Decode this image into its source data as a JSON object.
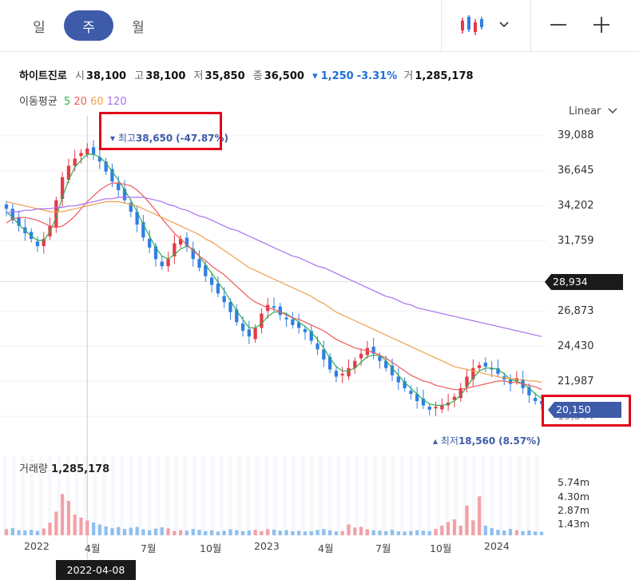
{
  "tabs": [
    {
      "label": "일",
      "active": false
    },
    {
      "label": "주",
      "active": true
    },
    {
      "label": "월",
      "active": false
    }
  ],
  "icons": {
    "chart_type": "candlestick-icon",
    "dropdown": "chevron-down-icon",
    "zoom_out": "minus-icon",
    "zoom_in": "plus-icon"
  },
  "stock": {
    "name": "하이트진로",
    "open_label": "시",
    "open": "38,100",
    "high_label": "고",
    "high": "38,100",
    "low_label": "저",
    "low": "35,850",
    "close_label": "종",
    "close": "36,500",
    "change": "1,250",
    "change_pct": "-3.31%",
    "volume_label": "거",
    "volume": "1,285,178"
  },
  "moving_average": {
    "label": "이동평균",
    "periods": [
      "5",
      "20",
      "60",
      "120"
    ],
    "colors": {
      "5": "#2eae52",
      "20": "#ee5a5a",
      "60": "#f0a050",
      "120": "#a970f0"
    }
  },
  "scale_label": "Linear",
  "colors": {
    "up": "#e63946",
    "down": "#2f7ee6",
    "accent": "#3d5ba9",
    "highlight": "#e4001b",
    "volume_up": "#f2a1a6",
    "volume_down": "#8fc0ee"
  },
  "chart_data": {
    "type": "candlestick",
    "title": "",
    "x_ticks": [
      "2022",
      "4월",
      "7월",
      "10월",
      "2023",
      "4월",
      "7월",
      "10월",
      "2024"
    ],
    "y_ticks": [
      "39,088",
      "36,645",
      "34,202",
      "31,759",
      "26,873",
      "24,430",
      "21,987",
      "19,544"
    ],
    "ylim": [
      19544,
      39088
    ],
    "high_marker": {
      "label": "최고",
      "value": "38,650",
      "pct": "(-47.87%)"
    },
    "low_marker": {
      "label": "최저",
      "value": "18,560",
      "pct": "(8.57%)"
    },
    "crosshair_price": "28,934",
    "current_price": "20,150",
    "crosshair_date": "2022-04-08",
    "volume": {
      "label": "거래량",
      "value": "1,285,178",
      "ticks": [
        "5.74m",
        "4.30m",
        "2.87m",
        "1.43m"
      ],
      "ymax": 6500000
    },
    "series": [
      {
        "name": "close",
        "values": [
          34000,
          33200,
          32800,
          32300,
          31900,
          31400,
          31900,
          32800,
          34600,
          36200,
          37000,
          37500,
          37900,
          38200,
          37800,
          37300,
          36600,
          35900,
          35300,
          34600,
          33800,
          32900,
          32000,
          31300,
          30500,
          30000,
          30500,
          31600,
          31900,
          31400,
          30500,
          29900,
          29300,
          28700,
          28100,
          27500,
          26800,
          26100,
          25500,
          25100,
          25700,
          26700,
          27300,
          27100,
          26600,
          26300,
          25900,
          25700,
          25400,
          24800,
          24200,
          23500,
          22800,
          22300,
          22500,
          22900,
          23400,
          23900,
          24300,
          23900,
          23400,
          22900,
          22400,
          21900,
          21500,
          21100,
          20600,
          20300,
          20000,
          20200,
          20300,
          20500,
          20900,
          21500,
          22300,
          22900,
          23100,
          23000,
          22800,
          22500,
          22100,
          21800,
          22200,
          21500,
          21000,
          20600,
          20400
        ]
      },
      {
        "name": "5",
        "values": [
          33800,
          33400,
          32900,
          32500,
          32100,
          31800,
          31800,
          32400,
          33400,
          34800,
          36000,
          36900,
          37400,
          37800,
          37800,
          37600,
          37200,
          36600,
          36000,
          35300,
          34600,
          33800,
          32900,
          32100,
          31300,
          30700,
          30500,
          30800,
          31200,
          31400,
          31200,
          30700,
          30100,
          29500,
          28900,
          28300,
          27600,
          26900,
          26300,
          25700,
          25700,
          26000,
          26500,
          26800,
          26800,
          26700,
          26400,
          26100,
          25800,
          25400,
          24900,
          24300,
          23600,
          23000,
          22700,
          22700,
          22900,
          23300,
          23700,
          23800,
          23800,
          23400,
          22900,
          22400,
          21900,
          21500,
          21100,
          20700,
          20400,
          20300,
          20300,
          20400,
          20600,
          21000,
          21600,
          22200,
          22700,
          22900,
          22900,
          22800,
          22500,
          22100,
          22000,
          21800,
          21500,
          21100,
          20800
        ]
      },
      {
        "name": "20",
        "values": [
          33000,
          33300,
          33400,
          33400,
          33300,
          33200,
          33000,
          32800,
          32700,
          32800,
          33100,
          33500,
          34000,
          34500,
          34900,
          35300,
          35600,
          35800,
          35800,
          35700,
          35600,
          35300,
          34900,
          34400,
          33900,
          33300,
          32800,
          32300,
          31900,
          31500,
          31100,
          30700,
          30400,
          30000,
          29700,
          29400,
          29000,
          28600,
          28200,
          27800,
          27500,
          27300,
          27100,
          27000,
          26800,
          26600,
          26400,
          26300,
          26100,
          25900,
          25700,
          25500,
          25200,
          24900,
          24700,
          24500,
          24300,
          24200,
          24100,
          24000,
          23800,
          23600,
          23300,
          23000,
          22700,
          22400,
          22200,
          22000,
          21900,
          21700,
          21600,
          21500,
          21400,
          21400,
          21500,
          21600,
          21700,
          21800,
          21900,
          22000,
          22000,
          21900,
          21900,
          21800,
          21700,
          21600,
          21400
        ]
      },
      {
        "name": "60",
        "values": [
          34500,
          34400,
          34300,
          34200,
          34100,
          34000,
          33900,
          33800,
          33800,
          33800,
          33900,
          34000,
          34100,
          34200,
          34300,
          34400,
          34500,
          34500,
          34500,
          34400,
          34300,
          34200,
          34000,
          33800,
          33600,
          33400,
          33200,
          33000,
          32800,
          32600,
          32400,
          32200,
          31900,
          31700,
          31400,
          31100,
          30800,
          30500,
          30200,
          29900,
          29700,
          29500,
          29300,
          29100,
          28900,
          28700,
          28500,
          28300,
          28100,
          27900,
          27600,
          27400,
          27100,
          26800,
          26600,
          26400,
          26200,
          26000,
          25800,
          25600,
          25400,
          25200,
          25000,
          24800,
          24600,
          24400,
          24200,
          24000,
          23800,
          23600,
          23400,
          23200,
          23000,
          22900,
          22800,
          22700,
          22600,
          22500,
          22400,
          22300,
          22200,
          22200,
          22100,
          22100,
          22000,
          22000,
          21900
        ]
      },
      {
        "name": "120",
        "values": [
          33700,
          33800,
          33800,
          33900,
          33900,
          34000,
          34000,
          34000,
          34100,
          34100,
          34200,
          34200,
          34300,
          34400,
          34500,
          34600,
          34700,
          34700,
          34800,
          34800,
          34800,
          34800,
          34800,
          34700,
          34600,
          34500,
          34300,
          34200,
          34000,
          33900,
          33700,
          33500,
          33400,
          33200,
          33000,
          32800,
          32600,
          32500,
          32300,
          32100,
          31900,
          31700,
          31500,
          31300,
          31100,
          30900,
          30700,
          30600,
          30400,
          30200,
          30000,
          29900,
          29700,
          29500,
          29300,
          29100,
          28900,
          28700,
          28500,
          28300,
          28100,
          27900,
          27800,
          27600,
          27400,
          27300,
          27100,
          27000,
          26900,
          26800,
          26700,
          26600,
          26500,
          26400,
          26300,
          26200,
          26100,
          26000,
          25900,
          25800,
          25700,
          25600,
          25500,
          25400,
          25300,
          25200,
          25100
        ]
      },
      {
        "name": "volume",
        "values": [
          620000,
          740000,
          510000,
          480000,
          560000,
          450000,
          690000,
          1280000,
          2400000,
          4200000,
          3500000,
          2100000,
          1800000,
          1500000,
          1300000,
          1100000,
          900000,
          720000,
          840000,
          640000,
          760000,
          850000,
          600000,
          520000,
          680000,
          810000,
          700000,
          440000,
          520000,
          470000,
          640000,
          560000,
          430000,
          520000,
          380000,
          460000,
          610000,
          520000,
          420000,
          480000,
          560000,
          430000,
          620000,
          580000,
          470000,
          520000,
          410000,
          450000,
          380000,
          420000,
          540000,
          640000,
          510000,
          390000,
          430000,
          1100000,
          780000,
          860000,
          610000,
          520000,
          470000,
          420000,
          560000,
          400000,
          380000,
          440000,
          520000,
          470000,
          410000,
          640000,
          980000,
          1350000,
          1620000,
          980000,
          3010000,
          1520000,
          3960000,
          980000,
          720000,
          560000,
          480000,
          640000,
          520000,
          430000,
          480000,
          390000,
          360000
        ]
      }
    ]
  }
}
